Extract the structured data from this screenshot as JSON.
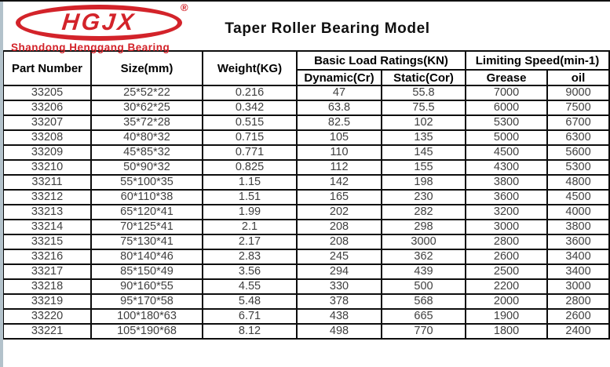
{
  "brand": {
    "logo_text": "HGJX",
    "registered_mark": "®",
    "tagline": "Shandong Henggang Bearing"
  },
  "title": "Taper Roller Bearing Model",
  "colors": {
    "brand_red": "#d3232a",
    "border_black": "#0d0d0d",
    "data_text": "#404040",
    "left_strip": "#b3c2cb"
  },
  "table": {
    "headers": {
      "part_number": "Part Number",
      "size": "Size(mm)",
      "weight": "Weight(KG)",
      "basic_load_ratings": "Basic Load Ratings(KN)",
      "dynamic": "Dynamic(Cr)",
      "static": "Static(Cor)",
      "limiting_speed": "Limiting Speed(min-1)",
      "grease": "Grease",
      "oil": "oil"
    },
    "rows": [
      [
        "33205",
        "25*52*22",
        "0.216",
        "47",
        "55.8",
        "7000",
        "9000"
      ],
      [
        "33206",
        "30*62*25",
        "0.342",
        "63.8",
        "75.5",
        "6000",
        "7500"
      ],
      [
        "33207",
        "35*72*28",
        "0.515",
        "82.5",
        "102",
        "5300",
        "6700"
      ],
      [
        "33208",
        "40*80*32",
        "0.715",
        "105",
        "135",
        "5000",
        "6300"
      ],
      [
        "33209",
        "45*85*32",
        "0.771",
        "110",
        "145",
        "4500",
        "5600"
      ],
      [
        "33210",
        "50*90*32",
        "0.825",
        "112",
        "155",
        "4300",
        "5300"
      ],
      [
        "33211",
        "55*100*35",
        "1.15",
        "142",
        "198",
        "3800",
        "4800"
      ],
      [
        "33212",
        "60*110*38",
        "1.51",
        "165",
        "230",
        "3600",
        "4500"
      ],
      [
        "33213",
        "65*120*41",
        "1.99",
        "202",
        "282",
        "3200",
        "4000"
      ],
      [
        "33214",
        "70*125*41",
        "2.1",
        "208",
        "298",
        "3000",
        "3800"
      ],
      [
        "33215",
        "75*130*41",
        "2.17",
        "208",
        "3000",
        "2800",
        "3600"
      ],
      [
        "33216",
        "80*140*46",
        "2.83",
        "245",
        "362",
        "2600",
        "3400"
      ],
      [
        "33217",
        "85*150*49",
        "3.56",
        "294",
        "439",
        "2500",
        "3400"
      ],
      [
        "33218",
        "90*160*55",
        "4.55",
        "330",
        "500",
        "2200",
        "3000"
      ],
      [
        "33219",
        "95*170*58",
        "5.48",
        "378",
        "568",
        "2000",
        "2800"
      ],
      [
        "33220",
        "100*180*63",
        "6.71",
        "438",
        "665",
        "1900",
        "2600"
      ],
      [
        "33221",
        "105*190*68",
        "8.12",
        "498",
        "770",
        "1800",
        "2400"
      ]
    ]
  }
}
